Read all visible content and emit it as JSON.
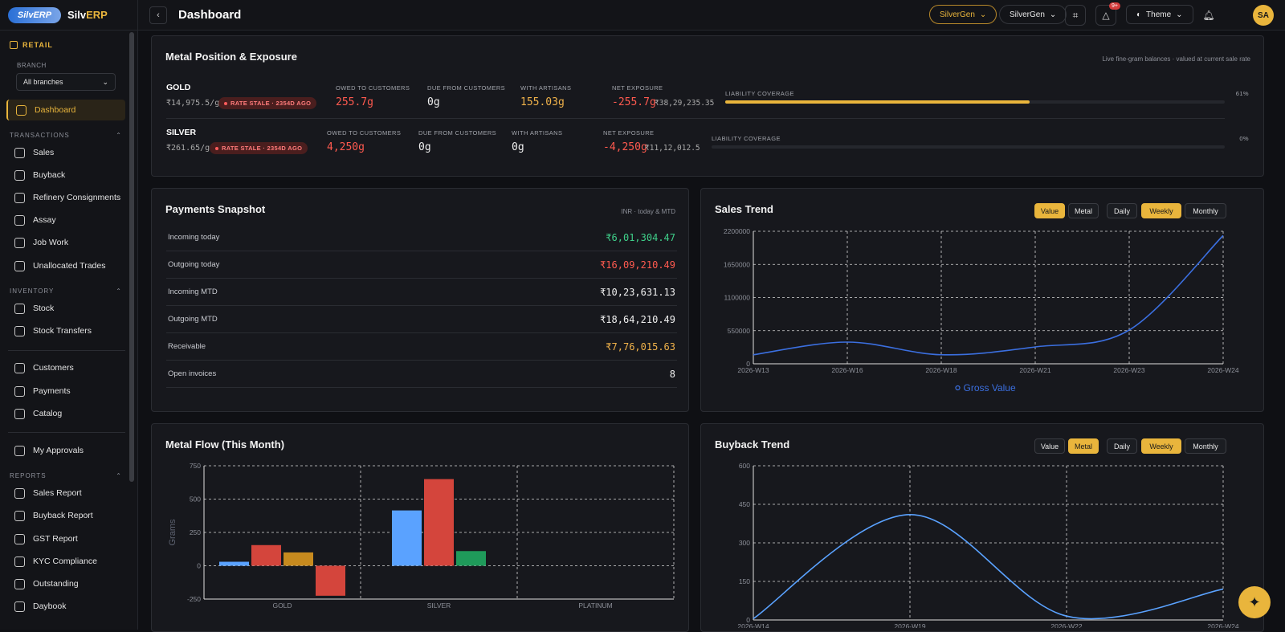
{
  "app": {
    "logo_text": "SilvERP",
    "name_a": "Silv",
    "name_b": "ERP"
  },
  "sidebar": {
    "section": "RETAIL",
    "branch_label": "BRANCH",
    "branch_value": "All branches",
    "dashboard": "Dashboard",
    "groups": {
      "transactions": "TRANSACTIONS",
      "inventory": "INVENTORY",
      "reports": "REPORTS"
    },
    "transactions": [
      "Sales",
      "Buyback",
      "Refinery Consignments",
      "Assay",
      "Job Work",
      "Unallocated Trades"
    ],
    "inventory": [
      "Stock",
      "Stock Transfers"
    ],
    "other": [
      "Customers",
      "Payments",
      "Catalog"
    ],
    "approvals": "My Approvals",
    "reports": [
      "Sales Report",
      "Buyback Report",
      "GST Report",
      "KYC Compliance",
      "Outstanding",
      "Daybook"
    ]
  },
  "topbar": {
    "title": "Dashboard",
    "tenant_pill": "SilverGen",
    "org_pill": "SilverGen",
    "notif_count": "9+",
    "theme_label": "Theme",
    "avatar": "SA"
  },
  "metal_position": {
    "title": "Metal Position & Exposure",
    "subtitle": "Live fine-gram balances · valued at current sale rate",
    "labels": {
      "owed": "OWED TO CUSTOMERS",
      "due": "DUE FROM CUSTOMERS",
      "artisans": "WITH ARTISANS",
      "net": "NET EXPOSURE",
      "coverage": "LIABILITY COVERAGE"
    },
    "rows": [
      {
        "metal": "GOLD",
        "rate": "₹14,975.5/g",
        "stale": "RATE STALE · 2354D AGO",
        "owed": "255.7g",
        "due": "0g",
        "artisans": "155.03g",
        "net": "-255.7g",
        "net_value": "₹38,29,235.35",
        "coverage_pct": "61%",
        "coverage": 0.61
      },
      {
        "metal": "SILVER",
        "rate": "₹261.65/g",
        "stale": "RATE STALE · 2354D AGO",
        "owed": "4,250g",
        "due": "0g",
        "artisans": "0g",
        "net": "-4,250g",
        "net_value": "₹11,12,012.5",
        "coverage_pct": "0%",
        "coverage": 0
      }
    ]
  },
  "payments": {
    "title": "Payments Snapshot",
    "subtitle": "INR · today & MTD",
    "rows": [
      {
        "label": "Incoming today",
        "value": "₹6,01,304.47",
        "color": "#3fd08a"
      },
      {
        "label": "Outgoing today",
        "value": "₹16,09,210.49",
        "color": "#ff5a4f"
      },
      {
        "label": "Incoming MTD",
        "value": "₹10,23,631.13",
        "color": "#f0f0f0"
      },
      {
        "label": "Outgoing MTD",
        "value": "₹18,64,210.49",
        "color": "#f0f0f0"
      },
      {
        "label": "Receivable",
        "value": "₹7,76,015.63",
        "color": "#f0b24a"
      },
      {
        "label": "Open invoices",
        "value": "8",
        "color": "#f0f0f0"
      }
    ]
  },
  "sales_trend": {
    "title": "Sales Trend",
    "buttons": {
      "value": "Value",
      "metal": "Metal",
      "daily": "Daily",
      "weekly": "Weekly",
      "monthly": "Monthly"
    },
    "legend": "Gross Value"
  },
  "buyback_trend": {
    "title": "Buyback Trend",
    "buttons": {
      "value": "Value",
      "metal": "Metal",
      "daily": "Daily",
      "weekly": "Weekly",
      "monthly": "Monthly"
    }
  },
  "metal_flow": {
    "title": "Metal Flow (This Month)"
  },
  "chart_data": [
    {
      "chart": "sales_trend",
      "type": "line",
      "x": [
        "2026-W13",
        "2026-W16",
        "2026-W18",
        "2026-W21",
        "2026-W23",
        "2026-W24"
      ],
      "series": [
        {
          "name": "Gross Value",
          "values": [
            150000,
            360000,
            150000,
            280000,
            560000,
            2130000
          ],
          "color": "#3b6fe0"
        }
      ],
      "ylim": [
        0,
        2200000
      ],
      "yticks": [
        "0",
        "550000",
        "1100000",
        "1650000",
        "2200000"
      ],
      "grid": true,
      "legend": "bottom"
    },
    {
      "chart": "metal_flow",
      "type": "bar",
      "categories": [
        "GOLD",
        "SILVER",
        "PLATINUM"
      ],
      "ylabel": "Grams",
      "ylim": [
        -250,
        750
      ],
      "yticks": [
        "-250",
        "0",
        "250",
        "500",
        "750"
      ],
      "bars": [
        {
          "category": "GOLD",
          "value": 30,
          "color": "#5aa2ff"
        },
        {
          "category": "GOLD",
          "value": 155,
          "color": "#d4453c"
        },
        {
          "category": "GOLD",
          "value": 100,
          "color": "#c78a1e"
        },
        {
          "category": "GOLD",
          "value": -225,
          "color": "#d4453c"
        },
        {
          "category": "SILVER",
          "value": 415,
          "color": "#5aa2ff"
        },
        {
          "category": "SILVER",
          "value": 650,
          "color": "#d4453c"
        },
        {
          "category": "SILVER",
          "value": 110,
          "color": "#1f9a5a"
        }
      ],
      "grid": true
    },
    {
      "chart": "buyback_trend",
      "type": "line",
      "x": [
        "2026-W14",
        "2026-W19",
        "2026-W22",
        "2026-W24"
      ],
      "series": [
        {
          "values": [
            5,
            410,
            15,
            120
          ],
          "color": "#5aa2ff"
        }
      ],
      "ylim": [
        0,
        600
      ],
      "yticks": [
        "0",
        "150",
        "300",
        "450",
        "600"
      ],
      "grid": true
    }
  ]
}
